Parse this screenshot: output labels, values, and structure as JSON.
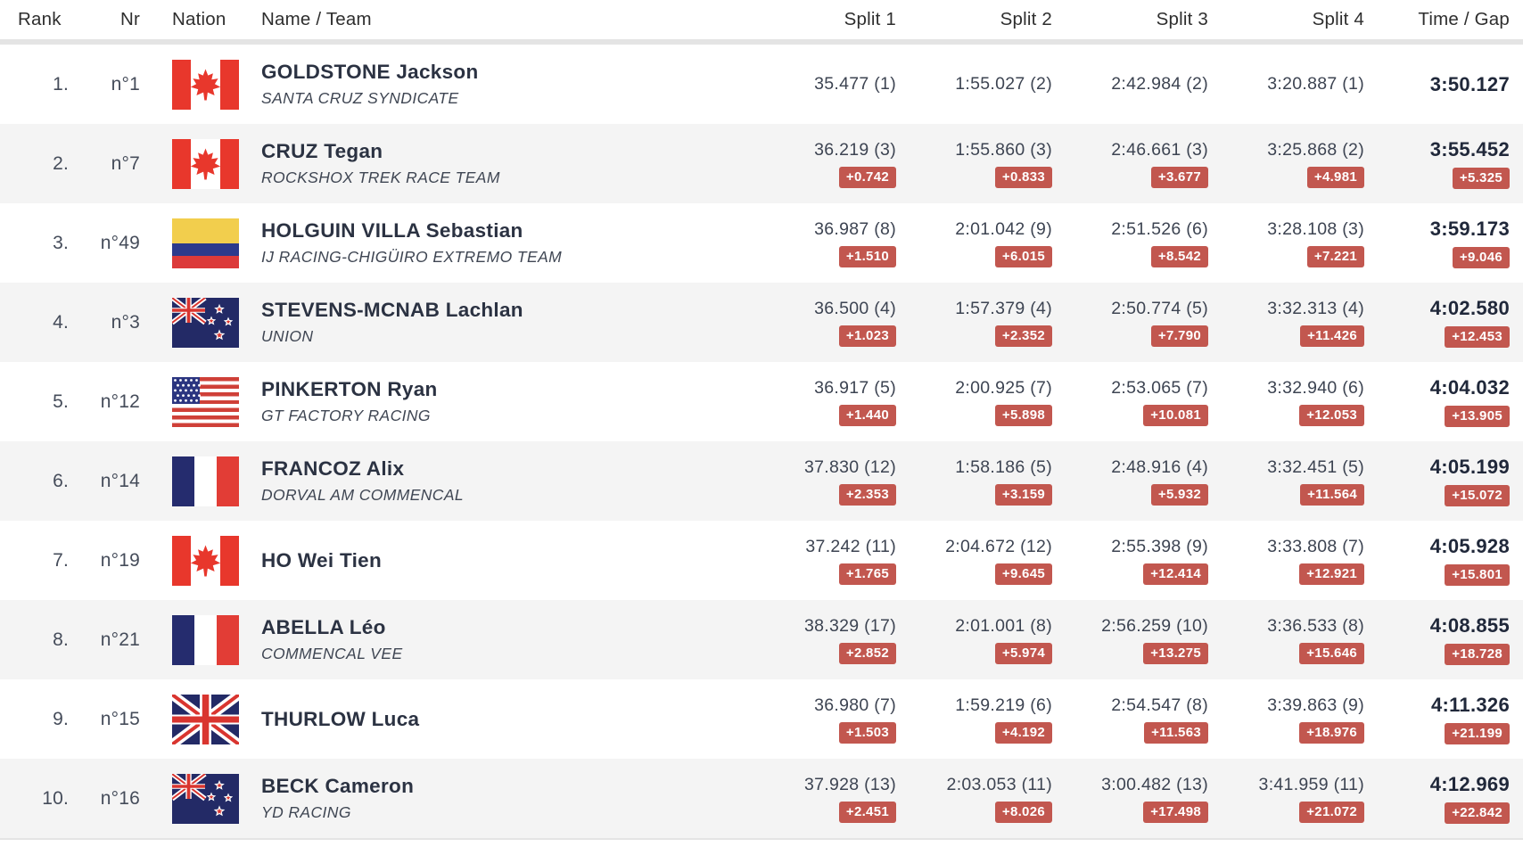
{
  "table": {
    "columns": {
      "rank": "Rank",
      "nr": "Nr",
      "nation": "Nation",
      "name": "Name / Team",
      "split1": "Split 1",
      "split2": "Split 2",
      "split3": "Split 3",
      "split4": "Split 4",
      "time": "Time / Gap"
    }
  },
  "colors": {
    "badge_red": "#c2574f",
    "row_alt": "#f4f4f4",
    "divider": "#e4e4e4"
  },
  "rows": [
    {
      "rank": "1.",
      "nr": "n°1",
      "nation": "CAN",
      "name": "GOLDSTONE Jackson",
      "team": "SANTA CRUZ SYNDICATE",
      "splits": [
        {
          "time": "35.477 (1)",
          "gap": ""
        },
        {
          "time": "1:55.027 (2)",
          "gap": ""
        },
        {
          "time": "2:42.984 (2)",
          "gap": ""
        },
        {
          "time": "3:20.887 (1)",
          "gap": ""
        }
      ],
      "time": "3:50.127",
      "gap": ""
    },
    {
      "rank": "2.",
      "nr": "n°7",
      "nation": "CAN",
      "name": "CRUZ Tegan",
      "team": "ROCKSHOX TREK RACE TEAM",
      "splits": [
        {
          "time": "36.219 (3)",
          "gap": "+0.742"
        },
        {
          "time": "1:55.860 (3)",
          "gap": "+0.833"
        },
        {
          "time": "2:46.661 (3)",
          "gap": "+3.677"
        },
        {
          "time": "3:25.868 (2)",
          "gap": "+4.981"
        }
      ],
      "time": "3:55.452",
      "gap": "+5.325"
    },
    {
      "rank": "3.",
      "nr": "n°49",
      "nation": "COL",
      "name": "HOLGUIN VILLA Sebastian",
      "team": "IJ RACING-CHIGÜIRO EXTREMO TEAM",
      "splits": [
        {
          "time": "36.987 (8)",
          "gap": "+1.510"
        },
        {
          "time": "2:01.042 (9)",
          "gap": "+6.015"
        },
        {
          "time": "2:51.526 (6)",
          "gap": "+8.542"
        },
        {
          "time": "3:28.108 (3)",
          "gap": "+7.221"
        }
      ],
      "time": "3:59.173",
      "gap": "+9.046"
    },
    {
      "rank": "4.",
      "nr": "n°3",
      "nation": "NZL",
      "name": "STEVENS-MCNAB Lachlan",
      "team": "UNION",
      "splits": [
        {
          "time": "36.500 (4)",
          "gap": "+1.023"
        },
        {
          "time": "1:57.379 (4)",
          "gap": "+2.352"
        },
        {
          "time": "2:50.774 (5)",
          "gap": "+7.790"
        },
        {
          "time": "3:32.313 (4)",
          "gap": "+11.426"
        }
      ],
      "time": "4:02.580",
      "gap": "+12.453"
    },
    {
      "rank": "5.",
      "nr": "n°12",
      "nation": "USA",
      "name": "PINKERTON Ryan",
      "team": "GT FACTORY RACING",
      "splits": [
        {
          "time": "36.917 (5)",
          "gap": "+1.440"
        },
        {
          "time": "2:00.925 (7)",
          "gap": "+5.898"
        },
        {
          "time": "2:53.065 (7)",
          "gap": "+10.081"
        },
        {
          "time": "3:32.940 (6)",
          "gap": "+12.053"
        }
      ],
      "time": "4:04.032",
      "gap": "+13.905"
    },
    {
      "rank": "6.",
      "nr": "n°14",
      "nation": "FRA",
      "name": "FRANCOZ Alix",
      "team": "DORVAL AM COMMENCAL",
      "splits": [
        {
          "time": "37.830 (12)",
          "gap": "+2.353"
        },
        {
          "time": "1:58.186 (5)",
          "gap": "+3.159"
        },
        {
          "time": "2:48.916 (4)",
          "gap": "+5.932"
        },
        {
          "time": "3:32.451 (5)",
          "gap": "+11.564"
        }
      ],
      "time": "4:05.199",
      "gap": "+15.072"
    },
    {
      "rank": "7.",
      "nr": "n°19",
      "nation": "CAN",
      "name": "HO Wei Tien",
      "team": "",
      "splits": [
        {
          "time": "37.242 (11)",
          "gap": "+1.765"
        },
        {
          "time": "2:04.672 (12)",
          "gap": "+9.645"
        },
        {
          "time": "2:55.398 (9)",
          "gap": "+12.414"
        },
        {
          "time": "3:33.808 (7)",
          "gap": "+12.921"
        }
      ],
      "time": "4:05.928",
      "gap": "+15.801"
    },
    {
      "rank": "8.",
      "nr": "n°21",
      "nation": "FRA",
      "name": "ABELLA Léo",
      "team": "COMMENCAL VEE",
      "splits": [
        {
          "time": "38.329 (17)",
          "gap": "+2.852"
        },
        {
          "time": "2:01.001 (8)",
          "gap": "+5.974"
        },
        {
          "time": "2:56.259 (10)",
          "gap": "+13.275"
        },
        {
          "time": "3:36.533 (8)",
          "gap": "+15.646"
        }
      ],
      "time": "4:08.855",
      "gap": "+18.728"
    },
    {
      "rank": "9.",
      "nr": "n°15",
      "nation": "GBR",
      "name": "THURLOW Luca",
      "team": "",
      "splits": [
        {
          "time": "36.980 (7)",
          "gap": "+1.503"
        },
        {
          "time": "1:59.219 (6)",
          "gap": "+4.192"
        },
        {
          "time": "2:54.547 (8)",
          "gap": "+11.563"
        },
        {
          "time": "3:39.863 (9)",
          "gap": "+18.976"
        }
      ],
      "time": "4:11.326",
      "gap": "+21.199"
    },
    {
      "rank": "10.",
      "nr": "n°16",
      "nation": "NZL",
      "name": "BECK Cameron",
      "team": "YD RACING",
      "splits": [
        {
          "time": "37.928 (13)",
          "gap": "+2.451"
        },
        {
          "time": "2:03.053 (11)",
          "gap": "+8.026"
        },
        {
          "time": "3:00.482 (13)",
          "gap": "+17.498"
        },
        {
          "time": "3:41.959 (11)",
          "gap": "+21.072"
        }
      ],
      "time": "4:12.969",
      "gap": "+22.842"
    }
  ]
}
